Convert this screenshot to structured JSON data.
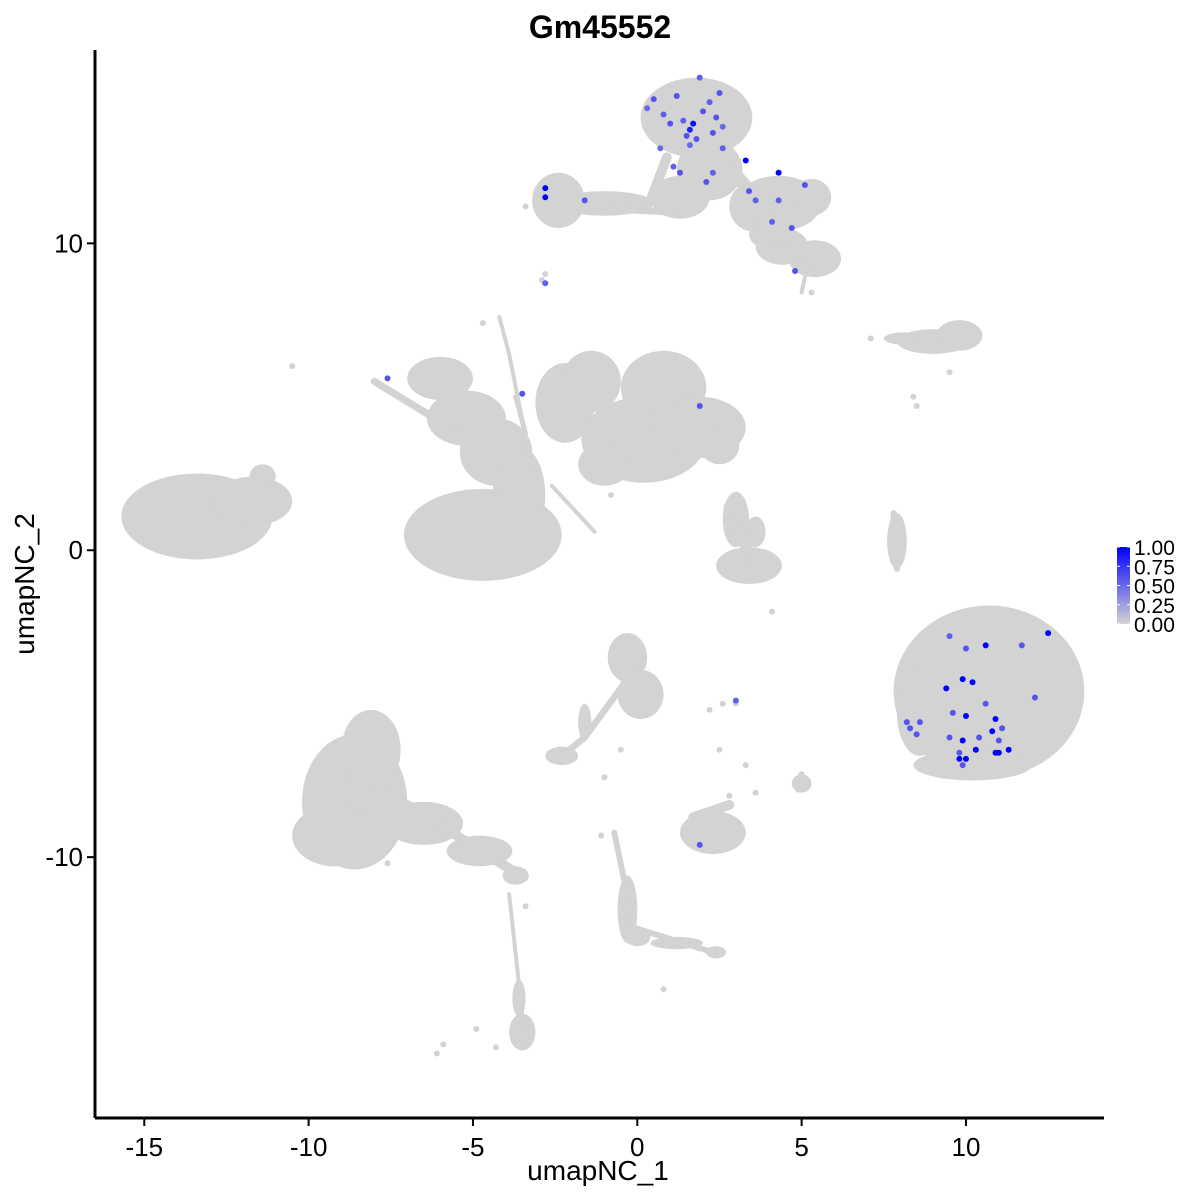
{
  "chart_data": {
    "type": "scatter",
    "title": "Gm45552",
    "xlabel": "umapNC_1",
    "ylabel": "umapNC_2",
    "xlim": [
      -16.5,
      14.2
    ],
    "ylim": [
      -18.5,
      16.3
    ],
    "x_ticks": [
      -15,
      -10,
      -5,
      0,
      5,
      10
    ],
    "x_tick_labels": [
      "-15",
      "-10",
      "-5",
      "0",
      "5",
      "10"
    ],
    "y_ticks": [
      -10,
      0,
      10
    ],
    "y_tick_labels": [
      "-10",
      "0",
      "10"
    ],
    "grid": false,
    "background_color": "#d3d3d3",
    "low_color": "#d3d3d3",
    "high_color": "#0000ff",
    "legend": {
      "placement": "right",
      "min": 0,
      "max": 1,
      "tick_values": [
        1.0,
        0.75,
        0.5,
        0.25,
        0.0
      ],
      "tick_labels": [
        "1.00",
        "0.75",
        "0.50",
        "0.25",
        "0.00"
      ]
    },
    "clusters": [
      {
        "cx": -13.4,
        "cy": 1.1,
        "rx": 2.3,
        "ry": 1.4
      },
      {
        "cx": -11.7,
        "cy": 1.6,
        "rx": 1.2,
        "ry": 0.8
      },
      {
        "cx": -11.4,
        "cy": 2.4,
        "rx": 0.4,
        "ry": 0.4
      },
      {
        "cx": -6.0,
        "cy": 5.6,
        "rx": 1.0,
        "ry": 0.7
      },
      {
        "cx": -5.2,
        "cy": 4.3,
        "rx": 1.2,
        "ry": 0.9
      },
      {
        "cx": -4.3,
        "cy": 3.2,
        "rx": 1.1,
        "ry": 1.1
      },
      {
        "cx": -3.6,
        "cy": 1.8,
        "rx": 0.8,
        "ry": 1.6
      },
      {
        "cx": -4.7,
        "cy": 0.5,
        "rx": 2.4,
        "ry": 1.5
      },
      {
        "cx": -2.2,
        "cy": 4.8,
        "rx": 0.9,
        "ry": 1.3
      },
      {
        "cx": -1.4,
        "cy": 5.5,
        "rx": 0.9,
        "ry": 1.0
      },
      {
        "cx": 0.8,
        "cy": 5.3,
        "rx": 1.3,
        "ry": 1.2
      },
      {
        "cx": 0.2,
        "cy": 3.6,
        "rx": 1.9,
        "ry": 1.4
      },
      {
        "cx": 1.9,
        "cy": 4.0,
        "rx": 1.4,
        "ry": 1.0
      },
      {
        "cx": 2.5,
        "cy": 3.4,
        "rx": 0.6,
        "ry": 0.6
      },
      {
        "cx": -1.0,
        "cy": 2.8,
        "rx": 0.8,
        "ry": 0.7
      },
      {
        "cx": 1.8,
        "cy": 14.1,
        "rx": 1.7,
        "ry": 1.3
      },
      {
        "cx": 2.2,
        "cy": 12.4,
        "rx": 1.0,
        "ry": 1.0
      },
      {
        "cx": 1.3,
        "cy": 11.5,
        "rx": 0.9,
        "ry": 0.7
      },
      {
        "cx": -2.4,
        "cy": 11.4,
        "rx": 0.8,
        "ry": 0.9
      },
      {
        "cx": -1.0,
        "cy": 11.3,
        "rx": 1.5,
        "ry": 0.4
      },
      {
        "cx": 4.3,
        "cy": 11.3,
        "rx": 1.3,
        "ry": 0.9
      },
      {
        "cx": 5.3,
        "cy": 11.5,
        "rx": 0.6,
        "ry": 0.6
      },
      {
        "cx": 5.4,
        "cy": 9.5,
        "rx": 0.8,
        "ry": 0.6
      },
      {
        "cx": 4.4,
        "cy": 9.9,
        "rx": 0.8,
        "ry": 0.6
      },
      {
        "cx": 3.8,
        "cy": 10.3,
        "rx": 0.4,
        "ry": 0.4
      },
      {
        "cx": 3.5,
        "cy": 11.2,
        "rx": 0.7,
        "ry": 0.8
      },
      {
        "cx": 9.0,
        "cy": 6.8,
        "rx": 1.1,
        "ry": 0.4
      },
      {
        "cx": 9.8,
        "cy": 7.0,
        "rx": 0.7,
        "ry": 0.5
      },
      {
        "cx": 8.1,
        "cy": 6.9,
        "rx": 0.6,
        "ry": 0.2
      },
      {
        "cx": 3.0,
        "cy": 1.0,
        "rx": 0.4,
        "ry": 0.9
      },
      {
        "cx": 3.4,
        "cy": -0.5,
        "rx": 1.0,
        "ry": 0.6
      },
      {
        "cx": 3.6,
        "cy": 0.6,
        "rx": 0.3,
        "ry": 0.5
      },
      {
        "cx": 7.9,
        "cy": 0.3,
        "rx": 0.3,
        "ry": 0.9
      },
      {
        "cx": 10.7,
        "cy": -4.6,
        "rx": 2.9,
        "ry": 2.8
      },
      {
        "cx": 8.6,
        "cy": -5.3,
        "rx": 0.7,
        "ry": 1.4
      },
      {
        "cx": 10.2,
        "cy": -7.0,
        "rx": 1.8,
        "ry": 0.5
      },
      {
        "cx": -0.3,
        "cy": -3.5,
        "rx": 0.6,
        "ry": 0.8
      },
      {
        "cx": 0.1,
        "cy": -4.7,
        "rx": 0.7,
        "ry": 0.8
      },
      {
        "cx": -1.6,
        "cy": -5.6,
        "rx": 0.2,
        "ry": 0.6
      },
      {
        "cx": -2.3,
        "cy": -6.7,
        "rx": 0.5,
        "ry": 0.3
      },
      {
        "cx": 2.3,
        "cy": -9.2,
        "rx": 1.0,
        "ry": 0.7
      },
      {
        "cx": 5.0,
        "cy": -7.6,
        "rx": 0.3,
        "ry": 0.3
      },
      {
        "cx": -8.6,
        "cy": -8.2,
        "rx": 1.6,
        "ry": 2.2
      },
      {
        "cx": -9.2,
        "cy": -9.3,
        "rx": 1.3,
        "ry": 1.0
      },
      {
        "cx": -8.1,
        "cy": -6.5,
        "rx": 0.9,
        "ry": 1.3
      },
      {
        "cx": -6.5,
        "cy": -8.9,
        "rx": 1.2,
        "ry": 0.7
      },
      {
        "cx": -4.8,
        "cy": -9.8,
        "rx": 1.0,
        "ry": 0.5
      },
      {
        "cx": -3.7,
        "cy": -10.6,
        "rx": 0.4,
        "ry": 0.3
      },
      {
        "cx": -3.5,
        "cy": -15.7,
        "rx": 0.4,
        "ry": 0.6
      },
      {
        "cx": -3.6,
        "cy": -14.6,
        "rx": 0.2,
        "ry": 0.6
      },
      {
        "cx": -0.3,
        "cy": -11.7,
        "rx": 0.3,
        "ry": 1.1
      },
      {
        "cx": 0.0,
        "cy": -12.6,
        "rx": 0.4,
        "ry": 0.3
      },
      {
        "cx": 1.2,
        "cy": -12.8,
        "rx": 0.8,
        "ry": 0.2
      },
      {
        "cx": 2.4,
        "cy": -13.1,
        "rx": 0.3,
        "ry": 0.2
      }
    ],
    "strands": [
      {
        "x1": -3.9,
        "y1": 6.4,
        "x2": -3.2,
        "y2": 2.6,
        "w": 0.12
      },
      {
        "x1": -4.2,
        "y1": 7.6,
        "x2": -3.9,
        "y2": 6.4,
        "w": 0.12
      },
      {
        "x1": -2.6,
        "y1": 2.1,
        "x2": -1.3,
        "y2": 0.6,
        "w": 0.12
      },
      {
        "x1": -8.0,
        "y1": 5.5,
        "x2": -5.4,
        "y2": 3.8,
        "w": 0.22
      },
      {
        "x1": -3.6,
        "y1": 1.8,
        "x2": -3.6,
        "y2": -0.3,
        "w": 0.3
      },
      {
        "x1": -3.7,
        "y1": 5.0,
        "x2": -3.4,
        "y2": 3.8,
        "w": 0.15
      },
      {
        "x1": 0.9,
        "y1": 12.8,
        "x2": 0.4,
        "y2": 11.4,
        "w": 0.3
      },
      {
        "x1": 2.6,
        "y1": 12.7,
        "x2": 3.6,
        "y2": 11.5,
        "w": 0.4
      },
      {
        "x1": 3.9,
        "y1": 10.8,
        "x2": 5.4,
        "y2": 9.2,
        "w": 0.35
      },
      {
        "x1": -2.3,
        "y1": 11.2,
        "x2": 1.5,
        "y2": 11.0,
        "w": 0.22
      },
      {
        "x1": 5.2,
        "y1": 9.4,
        "x2": 5.0,
        "y2": 8.4,
        "w": 0.1
      },
      {
        "x1": 7.8,
        "y1": 1.2,
        "x2": 7.9,
        "y2": -0.6,
        "w": 0.2
      },
      {
        "x1": 2.8,
        "y1": 1.4,
        "x2": 3.6,
        "y2": -0.6,
        "w": 0.35
      },
      {
        "x1": -0.3,
        "y1": -4.2,
        "x2": -1.6,
        "y2": -6.1,
        "w": 0.2
      },
      {
        "x1": -1.6,
        "y1": -6.1,
        "x2": -2.4,
        "y2": -6.8,
        "w": 0.2
      },
      {
        "x1": -0.7,
        "y1": -9.2,
        "x2": -0.1,
        "y2": -12.3,
        "w": 0.18
      },
      {
        "x1": -0.1,
        "y1": -12.3,
        "x2": 2.3,
        "y2": -13.1,
        "w": 0.18
      },
      {
        "x1": -7.0,
        "y1": -8.3,
        "x2": -3.7,
        "y2": -10.5,
        "w": 0.3
      },
      {
        "x1": -3.9,
        "y1": -11.2,
        "x2": -3.4,
        "y2": -16.1,
        "w": 0.12
      },
      {
        "x1": 1.7,
        "y1": -8.7,
        "x2": 2.8,
        "y2": -8.3,
        "w": 0.3
      }
    ],
    "specks": [
      [
        -10.5,
        6.0
      ],
      [
        -4.7,
        7.4
      ],
      [
        -2.8,
        9.0
      ],
      [
        -2.9,
        8.8
      ],
      [
        3.0,
        -5.0
      ],
      [
        2.6,
        -5.0
      ],
      [
        1.9,
        -9.5
      ],
      [
        -3.5,
        -10.5
      ],
      [
        -4.3,
        -16.2
      ],
      [
        -5.9,
        -16.1
      ],
      [
        -6.1,
        -16.4
      ],
      [
        -4.9,
        -15.6
      ],
      [
        7.1,
        6.9
      ],
      [
        8.4,
        5.0
      ],
      [
        8.5,
        4.7
      ],
      [
        2.5,
        -6.5
      ],
      [
        3.3,
        -7.0
      ],
      [
        -2.9,
        11.1
      ],
      [
        -3.4,
        11.2
      ],
      [
        5.3,
        8.4
      ],
      [
        9.5,
        5.8
      ],
      [
        4.7,
        9.5
      ],
      [
        4.1,
        -2.0
      ],
      [
        -1.0,
        -7.4
      ],
      [
        -0.7,
        -9.2
      ],
      [
        0.8,
        -14.3
      ],
      [
        -0.5,
        -6.5
      ],
      [
        3.6,
        -7.9
      ],
      [
        2.2,
        -5.2
      ],
      [
        -1.1,
        -9.3
      ],
      [
        5.0,
        -7.3
      ],
      [
        4.9,
        -7.8
      ],
      [
        2.8,
        -8.0
      ],
      [
        -7.6,
        -10.2
      ],
      [
        -3.4,
        -11.6
      ],
      [
        0.6,
        4.6
      ],
      [
        -2.4,
        4.5
      ],
      [
        -0.8,
        1.8
      ]
    ],
    "expressing_points": [
      {
        "x": 0.5,
        "y": 14.7,
        "value": 0.6
      },
      {
        "x": 0.8,
        "y": 14.2,
        "value": 0.55
      },
      {
        "x": 1.0,
        "y": 13.9,
        "value": 0.6
      },
      {
        "x": 0.7,
        "y": 13.1,
        "value": 0.5
      },
      {
        "x": 1.2,
        "y": 14.8,
        "value": 0.6
      },
      {
        "x": 1.4,
        "y": 14.0,
        "value": 0.55
      },
      {
        "x": 1.5,
        "y": 13.5,
        "value": 0.6
      },
      {
        "x": 1.6,
        "y": 13.7,
        "value": 0.85
      },
      {
        "x": 1.7,
        "y": 13.9,
        "value": 0.95
      },
      {
        "x": 1.8,
        "y": 13.4,
        "value": 0.6
      },
      {
        "x": 1.6,
        "y": 13.2,
        "value": 0.5
      },
      {
        "x": 2.0,
        "y": 14.3,
        "value": 0.6
      },
      {
        "x": 2.2,
        "y": 14.6,
        "value": 0.55
      },
      {
        "x": 2.4,
        "y": 14.1,
        "value": 0.6
      },
      {
        "x": 2.5,
        "y": 14.9,
        "value": 0.6
      },
      {
        "x": 2.6,
        "y": 13.8,
        "value": 0.5
      },
      {
        "x": 1.9,
        "y": 15.4,
        "value": 0.55
      },
      {
        "x": 2.3,
        "y": 13.6,
        "value": 0.6
      },
      {
        "x": 2.6,
        "y": 13.1,
        "value": 0.55
      },
      {
        "x": 0.3,
        "y": 14.4,
        "value": 0.5
      },
      {
        "x": 1.1,
        "y": 12.5,
        "value": 0.55
      },
      {
        "x": 1.3,
        "y": 12.3,
        "value": 0.6
      },
      {
        "x": 2.1,
        "y": 12.0,
        "value": 0.6
      },
      {
        "x": 2.3,
        "y": 12.3,
        "value": 0.55
      },
      {
        "x": 3.3,
        "y": 12.7,
        "value": 1.0
      },
      {
        "x": 3.4,
        "y": 11.7,
        "value": 0.6
      },
      {
        "x": 3.6,
        "y": 11.4,
        "value": 0.55
      },
      {
        "x": 4.3,
        "y": 12.3,
        "value": 1.0
      },
      {
        "x": 4.3,
        "y": 11.4,
        "value": 0.55
      },
      {
        "x": 5.1,
        "y": 11.9,
        "value": 0.6
      },
      {
        "x": 4.1,
        "y": 10.7,
        "value": 0.55
      },
      {
        "x": 4.7,
        "y": 10.5,
        "value": 0.6
      },
      {
        "x": 4.8,
        "y": 9.1,
        "value": 0.6
      },
      {
        "x": -2.8,
        "y": 11.8,
        "value": 1.0
      },
      {
        "x": -2.8,
        "y": 11.5,
        "value": 1.0
      },
      {
        "x": -1.6,
        "y": 11.4,
        "value": 0.6
      },
      {
        "x": -2.8,
        "y": 8.7,
        "value": 0.55
      },
      {
        "x": -7.6,
        "y": 5.6,
        "value": 0.6
      },
      {
        "x": -3.5,
        "y": 5.1,
        "value": 0.6
      },
      {
        "x": 1.9,
        "y": 4.7,
        "value": 0.6
      },
      {
        "x": 3.0,
        "y": -4.9,
        "value": 0.55
      },
      {
        "x": 1.9,
        "y": -9.6,
        "value": 0.6
      },
      {
        "x": 9.5,
        "y": -2.8,
        "value": 0.55
      },
      {
        "x": 10.0,
        "y": -3.2,
        "value": 0.6
      },
      {
        "x": 10.6,
        "y": -3.1,
        "value": 1.0
      },
      {
        "x": 11.7,
        "y": -3.1,
        "value": 0.6
      },
      {
        "x": 12.5,
        "y": -2.7,
        "value": 1.0
      },
      {
        "x": 9.9,
        "y": -4.2,
        "value": 1.0
      },
      {
        "x": 10.2,
        "y": -4.3,
        "value": 1.0
      },
      {
        "x": 9.4,
        "y": -4.5,
        "value": 1.0
      },
      {
        "x": 9.6,
        "y": -5.3,
        "value": 0.6
      },
      {
        "x": 10.0,
        "y": -5.4,
        "value": 1.0
      },
      {
        "x": 10.6,
        "y": -5.0,
        "value": 0.6
      },
      {
        "x": 10.9,
        "y": -5.5,
        "value": 1.0
      },
      {
        "x": 10.8,
        "y": -5.9,
        "value": 1.0
      },
      {
        "x": 11.1,
        "y": -5.8,
        "value": 0.6
      },
      {
        "x": 12.1,
        "y": -4.8,
        "value": 0.6
      },
      {
        "x": 9.5,
        "y": -6.1,
        "value": 0.6
      },
      {
        "x": 9.9,
        "y": -6.2,
        "value": 1.0
      },
      {
        "x": 10.4,
        "y": -6.1,
        "value": 0.6
      },
      {
        "x": 10.3,
        "y": -6.5,
        "value": 1.0
      },
      {
        "x": 9.8,
        "y": -6.6,
        "value": 0.6
      },
      {
        "x": 10.0,
        "y": -6.8,
        "value": 1.0
      },
      {
        "x": 9.8,
        "y": -6.8,
        "value": 1.0
      },
      {
        "x": 11.0,
        "y": -6.2,
        "value": 0.6
      },
      {
        "x": 10.9,
        "y": -6.6,
        "value": 1.0
      },
      {
        "x": 11.0,
        "y": -6.6,
        "value": 1.0
      },
      {
        "x": 11.3,
        "y": -6.5,
        "value": 1.0
      },
      {
        "x": 9.9,
        "y": -7.0,
        "value": 0.6
      },
      {
        "x": 8.3,
        "y": -5.8,
        "value": 0.6
      },
      {
        "x": 8.2,
        "y": -5.6,
        "value": 0.6
      },
      {
        "x": 8.5,
        "y": -6.0,
        "value": 0.6
      },
      {
        "x": 8.6,
        "y": -5.6,
        "value": 0.6
      }
    ]
  }
}
